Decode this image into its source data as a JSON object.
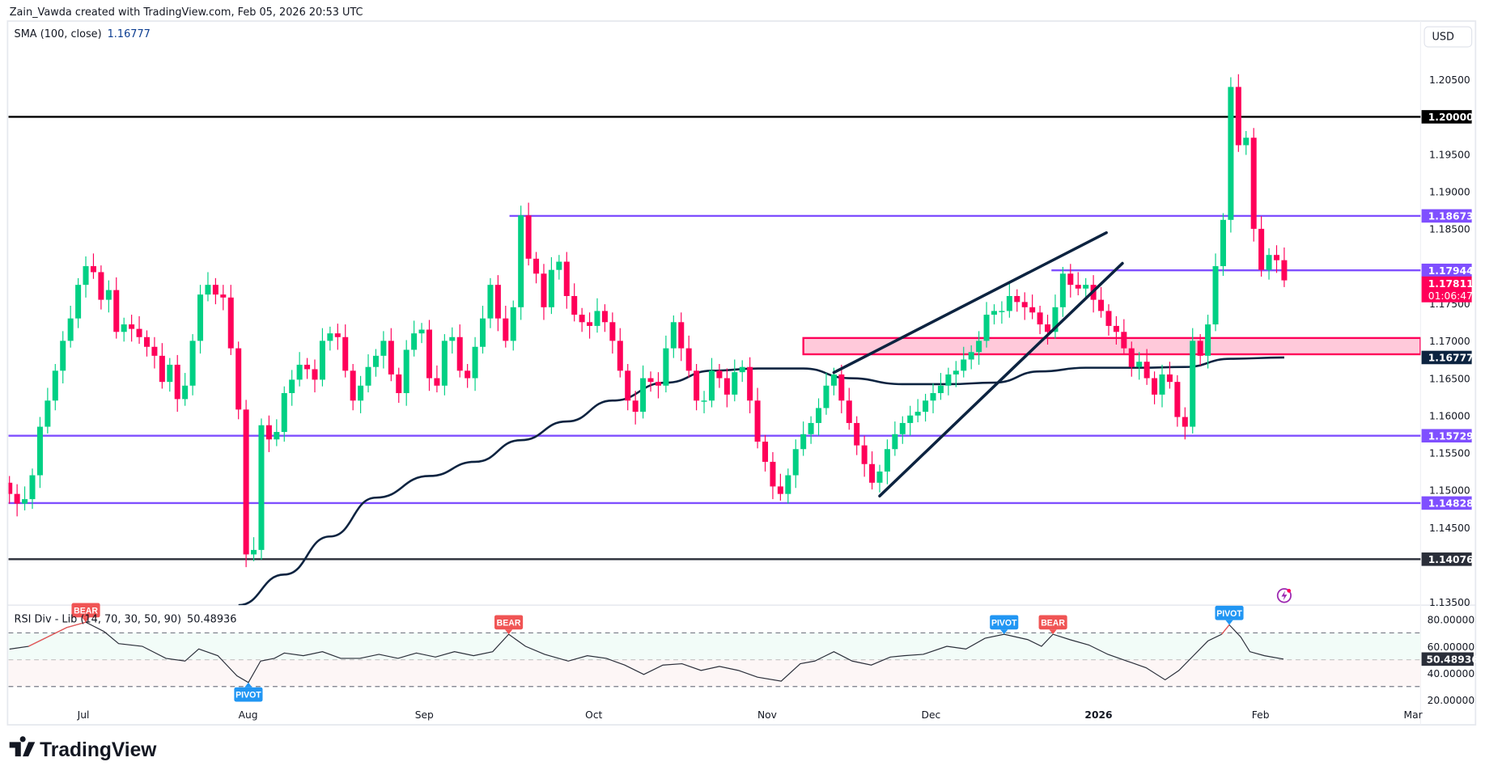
{
  "header": {
    "attribution": "Zain_Vawda created with TradingView.com, Feb 05, 2026 20:53 UTC",
    "currency_button": "USD",
    "sma_legend": {
      "label": "SMA (100, close)",
      "value": "1.16777"
    },
    "rsi_legend": {
      "label": "RSI Div - Lib (14, 70, 30, 50, 90)",
      "value": "50.48936"
    }
  },
  "brand": {
    "logo_text": "TradingView"
  },
  "colors": {
    "up": "#00d084",
    "down": "#ff0059",
    "level_purple": "#7f4fff",
    "level_black": "#000000",
    "sma": "#0c2340",
    "zone_fill": "#ffc9da",
    "zone_border": "#ff0059",
    "bear_tag": "#f05454",
    "pivot_tag": "#2196f3",
    "alert_icon": "#9c27b0"
  },
  "chart_data": [
    {
      "type": "candlestick",
      "title": "",
      "timeframe": "1D",
      "first_open": 1.151,
      "close": [
        1.1495,
        1.1482,
        1.1488,
        1.152,
        1.1585,
        1.162,
        1.166,
        1.17,
        1.173,
        1.1775,
        1.18,
        1.1792,
        1.1755,
        1.1768,
        1.1712,
        1.1722,
        1.1716,
        1.1705,
        1.1692,
        1.168,
        1.1645,
        1.1668,
        1.1622,
        1.164,
        1.17,
        1.1762,
        1.1775,
        1.1762,
        1.1758,
        1.169,
        1.1608,
        1.1414,
        1.142,
        1.1587,
        1.1568,
        1.1578,
        1.163,
        1.1648,
        1.1668,
        1.1662,
        1.1648,
        1.17,
        1.171,
        1.1705,
        1.166,
        1.162,
        1.164,
        1.1665,
        1.168,
        1.17,
        1.1655,
        1.163,
        1.1688,
        1.171,
        1.1715,
        1.165,
        1.164,
        1.17,
        1.1705,
        1.166,
        1.165,
        1.1692,
        1.173,
        1.1775,
        1.173,
        1.17,
        1.1745,
        1.1868,
        1.181,
        1.179,
        1.1745,
        1.1795,
        1.1806,
        1.176,
        1.1735,
        1.1725,
        1.172,
        1.174,
        1.1725,
        1.17,
        1.166,
        1.162,
        1.1605,
        1.165,
        1.1645,
        1.164,
        1.169,
        1.1725,
        1.169,
        1.166,
        1.162,
        1.162,
        1.166,
        1.165,
        1.1628,
        1.1658,
        1.1665,
        1.162,
        1.1565,
        1.1538,
        1.1505,
        1.1495,
        1.152,
        1.1555,
        1.1575,
        1.159,
        1.161,
        1.164,
        1.1655,
        1.162,
        1.159,
        1.156,
        1.1535,
        1.151,
        1.1525,
        1.1555,
        1.1575,
        1.159,
        1.16,
        1.1605,
        1.162,
        1.163,
        1.164,
        1.1655,
        1.166,
        1.1675,
        1.1685,
        1.17,
        1.1735,
        1.174,
        1.174,
        1.176,
        1.1752,
        1.1745,
        1.1738,
        1.1722,
        1.1712,
        1.1745,
        1.179,
        1.1775,
        1.177,
        1.1775,
        1.1755,
        1.174,
        1.172,
        1.1712,
        1.169,
        1.1665,
        1.1672,
        1.165,
        1.1628,
        1.1655,
        1.1645,
        1.1598,
        1.1585,
        1.17,
        1.168,
        1.1722,
        1.18,
        1.1862,
        1.204,
        1.1962,
        1.1972,
        1.185,
        1.1795,
        1.1815,
        1.1808,
        1.1781
      ],
      "sma_100_points": [
        [
          30,
          1.1346
        ],
        [
          36,
          1.1387
        ],
        [
          42,
          1.1438
        ],
        [
          48,
          1.149
        ],
        [
          55,
          1.1519
        ],
        [
          61,
          1.1538
        ],
        [
          67,
          1.1567
        ],
        [
          73,
          1.1592
        ],
        [
          79,
          1.162
        ],
        [
          86,
          1.1644
        ],
        [
          92,
          1.166
        ],
        [
          98,
          1.1663
        ],
        [
          104,
          1.1663
        ],
        [
          110,
          1.165
        ],
        [
          117,
          1.1642
        ],
        [
          123,
          1.1642
        ],
        [
          129,
          1.1644
        ],
        [
          135,
          1.1659
        ],
        [
          141,
          1.1664
        ],
        [
          148,
          1.1664
        ],
        [
          154,
          1.1665
        ],
        [
          160,
          1.1676
        ],
        [
          167,
          1.16777
        ]
      ],
      "levels": [
        {
          "price": 1.2,
          "label": "1.20000",
          "color": "#000000",
          "from_bar": 0
        },
        {
          "price": 1.18673,
          "label": "1.18673",
          "color": "#7f4fff",
          "from_bar": 66
        },
        {
          "price": 1.17944,
          "label": "1.17944",
          "color": "#7f4fff",
          "from_bar": 137
        },
        {
          "price": 1.15729,
          "label": "1.15729",
          "color": "#7f4fff",
          "from_bar": 0
        },
        {
          "price": 1.14828,
          "label": "1.14828",
          "color": "#7f4fff",
          "from_bar": 0
        },
        {
          "price": 1.14076,
          "label": "1.14076",
          "color": "#2a2e39",
          "from_bar": 0
        }
      ],
      "zone": {
        "from_bar": 104,
        "top": 1.17038,
        "bottom": 1.1682
      },
      "trendlines": [
        {
          "from": [
            108,
            1.16576
          ],
          "to": [
            143.7,
            1.18448
          ]
        },
        {
          "from": [
            114,
            1.14922
          ],
          "to": [
            145.8,
            1.18038
          ]
        }
      ],
      "last_price": {
        "value": "1.17811",
        "countdown": "01:06:47"
      },
      "sma_badge": "1.16777",
      "y_ticks": [
        "1.20500",
        "1.19500",
        "1.19000",
        "1.18500",
        "1.17500",
        "1.17000",
        "1.16500",
        "1.16000",
        "1.15500",
        "1.15000",
        "1.14500",
        "1.13500"
      ],
      "x_ticks": [
        "Jul",
        "Aug",
        "Sep",
        "Oct",
        "Nov",
        "Dec",
        "2026",
        "Feb",
        "Mar"
      ]
    },
    {
      "type": "line",
      "title": "",
      "ylim": [
        10,
        90
      ],
      "y_ticks": [
        "80.00000",
        "60.00000",
        "40.00000",
        "20.00000"
      ],
      "bands": {
        "upper": 70,
        "middle": 50,
        "lower": 30
      },
      "last_value": "50.48936",
      "rsi_points": [
        [
          0,
          57.9
        ],
        [
          2.5,
          60
        ],
        [
          5,
          67
        ],
        [
          7.5,
          74
        ],
        [
          10,
          78
        ],
        [
          12.4,
          71
        ],
        [
          14.3,
          62
        ],
        [
          17.4,
          60
        ],
        [
          20.5,
          51
        ],
        [
          23,
          49
        ],
        [
          24.8,
          58
        ],
        [
          27.3,
          53
        ],
        [
          29.8,
          38
        ],
        [
          31.3,
          33
        ],
        [
          32.9,
          49
        ],
        [
          34.7,
          51
        ],
        [
          36,
          55
        ],
        [
          38.5,
          53
        ],
        [
          41,
          56
        ],
        [
          43.4,
          51
        ],
        [
          45.9,
          51
        ],
        [
          48.4,
          54
        ],
        [
          50.9,
          51
        ],
        [
          53.3,
          55
        ],
        [
          55.8,
          52
        ],
        [
          58.3,
          56
        ],
        [
          60.8,
          53
        ],
        [
          63.3,
          56
        ],
        [
          65.4,
          69
        ],
        [
          67.6,
          60
        ],
        [
          70.1,
          54
        ],
        [
          73.2,
          49
        ],
        [
          75.7,
          53
        ],
        [
          78.2,
          51
        ],
        [
          80.6,
          46
        ],
        [
          83.1,
          39
        ],
        [
          85.6,
          46
        ],
        [
          88.1,
          47
        ],
        [
          90.6,
          42
        ],
        [
          93,
          45
        ],
        [
          95.5,
          42
        ],
        [
          98,
          37
        ],
        [
          101.1,
          34
        ],
        [
          103.6,
          47
        ],
        [
          105.5,
          49
        ],
        [
          108,
          56
        ],
        [
          110.4,
          49
        ],
        [
          112.9,
          46
        ],
        [
          115.4,
          52
        ],
        [
          117.2,
          53
        ],
        [
          119.7,
          54
        ],
        [
          122.8,
          60
        ],
        [
          125.3,
          58
        ],
        [
          127.8,
          66
        ],
        [
          130.3,
          69
        ],
        [
          133.4,
          65
        ],
        [
          135.2,
          60
        ],
        [
          136.7,
          69
        ],
        [
          138.9,
          65
        ],
        [
          141.4,
          61
        ],
        [
          143.9,
          54
        ],
        [
          146.4,
          49
        ],
        [
          148.9,
          44
        ],
        [
          151.4,
          35
        ],
        [
          153.2,
          42
        ],
        [
          155.1,
          53
        ],
        [
          157,
          64
        ],
        [
          158.8,
          69
        ],
        [
          159.8,
          76
        ],
        [
          161.3,
          67
        ],
        [
          162.5,
          56
        ],
        [
          164.4,
          53
        ],
        [
          166.9,
          50.49
        ]
      ],
      "signals": [
        {
          "bar": 10,
          "label": "BEAR",
          "kind": "bear"
        },
        {
          "bar": 31.3,
          "label": "PIVOT",
          "kind": "pivot-low"
        },
        {
          "bar": 65.4,
          "label": "BEAR",
          "kind": "bear"
        },
        {
          "bar": 130.3,
          "label": "PIVOT",
          "kind": "pivot-high"
        },
        {
          "bar": 136.7,
          "label": "BEAR",
          "kind": "bear"
        },
        {
          "bar": 159.8,
          "label": "PIVOT",
          "kind": "pivot-high"
        }
      ]
    }
  ]
}
